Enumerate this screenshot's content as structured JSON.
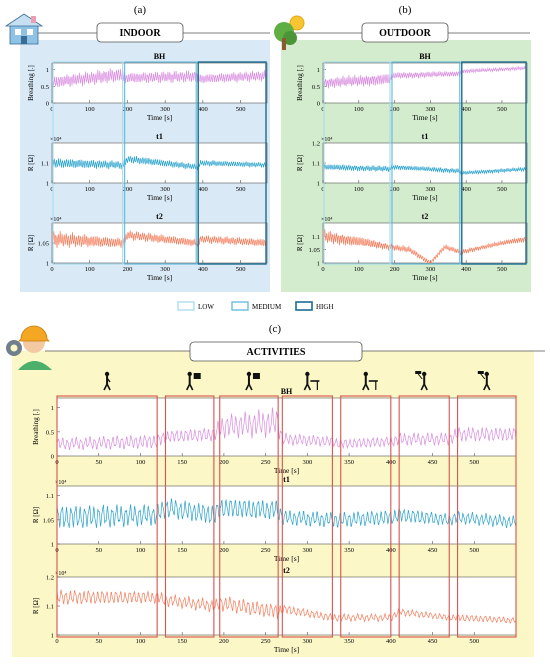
{
  "panel_letters": {
    "a": "(a)",
    "b": "(b)",
    "c": "(c)"
  },
  "colors": {
    "indoor_bg": "#d9e9f5",
    "outdoor_bg": "#d3eccd",
    "activities_bg": "#fbf7c7",
    "breathing": "#d98fe0",
    "t1": "#2aa3cc",
    "t2": "#f47f5e",
    "low": "#a7dcef",
    "medium": "#5fb8dc",
    "high": "#1c6d92",
    "activity_box": "#d9534f"
  },
  "legend": {
    "low": "LOW",
    "medium": "MEDIUM",
    "high": "HIGH"
  },
  "chart_data": [
    {
      "type": "line",
      "panel": "INDOOR",
      "title": "INDOOR",
      "x_ticks": [
        0,
        100,
        200,
        300,
        400,
        500
      ],
      "xlabel": "Time [s]",
      "xlim": [
        0,
        570
      ],
      "intensity_windows": [
        {
          "level": "LOW",
          "x": [
            0,
            190
          ]
        },
        {
          "level": "MEDIUM",
          "x": [
            190,
            385
          ]
        },
        {
          "level": "HIGH",
          "x": [
            385,
            570
          ]
        }
      ],
      "subplots": [
        {
          "name": "BH",
          "ylabel": "Breathing [.]",
          "exponent": "",
          "ylim": [
            0,
            1.2
          ],
          "y_ticks": [
            0,
            0.5,
            1
          ],
          "series": [
            {
              "x": [
                0,
                185,
                195,
                380,
                390,
                570
              ],
              "y_center": [
                0.62,
                0.85,
                0.75,
                0.8,
                0.72,
                0.82
              ],
              "amplitude": [
                0.18,
                0.22,
                0.16,
                0.18,
                0.14,
                0.16
              ]
            }
          ]
        },
        {
          "name": "t1",
          "ylabel": "R [Ω]",
          "exponent": "×10⁴",
          "ylim": [
            1.0,
            1.2
          ],
          "y_ticks": [
            1,
            1.1
          ],
          "series": [
            {
              "x": [
                0,
                190,
                200,
                385,
                395,
                570
              ],
              "y_center": [
                1.1,
                1.09,
                1.12,
                1.08,
                1.1,
                1.09
              ],
              "amplitude": [
                0.025,
                0.02,
                0.02,
                0.015,
                0.015,
                0.012
              ]
            }
          ]
        },
        {
          "name": "t2",
          "ylabel": "R [Ω]",
          "exponent": "×10⁴",
          "ylim": [
            1.0,
            1.1
          ],
          "y_ticks": [
            1,
            1.05
          ],
          "series": [
            {
              "x": [
                0,
                190,
                200,
                385,
                395,
                570
              ],
              "y_center": [
                1.06,
                1.05,
                1.07,
                1.05,
                1.06,
                1.05
              ],
              "amplitude": [
                0.02,
                0.012,
                0.012,
                0.01,
                0.01,
                0.01
              ]
            }
          ]
        }
      ]
    },
    {
      "type": "line",
      "panel": "OUTDOOR",
      "title": "OUTDOOR",
      "x_ticks": [
        0,
        100,
        200,
        300,
        400,
        500
      ],
      "xlabel": "Time [s]",
      "xlim": [
        0,
        570
      ],
      "intensity_windows": [
        {
          "level": "LOW",
          "x": [
            0,
            190
          ]
        },
        {
          "level": "MEDIUM",
          "x": [
            190,
            385
          ]
        },
        {
          "level": "HIGH",
          "x": [
            385,
            570
          ]
        }
      ],
      "subplots": [
        {
          "name": "BH",
          "ylabel": "Breathing [.]",
          "exponent": "",
          "ylim": [
            0,
            1.2
          ],
          "y_ticks": [
            0,
            0.5,
            1
          ],
          "series": [
            {
              "x": [
                0,
                185,
                195,
                380,
                390,
                570
              ],
              "y_center": [
                0.6,
                0.72,
                0.82,
                0.88,
                0.95,
                1.05
              ],
              "amplitude": [
                0.16,
                0.18,
                0.1,
                0.08,
                0.06,
                0.05
              ]
            }
          ]
        },
        {
          "name": "t1",
          "ylabel": "R [Ω]",
          "exponent": "×10⁴",
          "ylim": [
            1.0,
            1.2
          ],
          "y_ticks": [
            1,
            1.1,
            1.2
          ],
          "series": [
            {
              "x": [
                0,
                185,
                195,
                380,
                390,
                570
              ],
              "y_center": [
                1.08,
                1.07,
                1.08,
                1.06,
                1.05,
                1.07
              ],
              "amplitude": [
                0.015,
                0.015,
                0.012,
                0.012,
                0.01,
                0.01
              ]
            }
          ]
        },
        {
          "name": "t2",
          "ylabel": "R [Ω]",
          "exponent": "×10⁴",
          "ylim": [
            1.0,
            1.15
          ],
          "y_ticks": [
            1,
            1.05,
            1.1
          ],
          "series": [
            {
              "x": [
                0,
                100,
                190,
                240,
                300,
                340,
                385,
                450,
                520,
                570
              ],
              "y_center": [
                1.1,
                1.08,
                1.06,
                1.05,
                1.0,
                1.06,
                1.04,
                1.06,
                1.08,
                1.09
              ],
              "amplitude": [
                0.025,
                0.02,
                0.012,
                0.012,
                0.008,
                0.01,
                0.01,
                0.008,
                0.01,
                0.012
              ]
            }
          ]
        }
      ]
    },
    {
      "type": "line",
      "panel": "ACTIVITIES",
      "title": "ACTIVITIES",
      "x_ticks": [
        0,
        50,
        100,
        150,
        200,
        250,
        300,
        350,
        400,
        450,
        500
      ],
      "xlabel": "Time [s]",
      "xlim": [
        0,
        550
      ],
      "activity_windows": [
        [
          0,
          120
        ],
        [
          130,
          188
        ],
        [
          195,
          265
        ],
        [
          270,
          330
        ],
        [
          340,
          400
        ],
        [
          410,
          470
        ],
        [
          480,
          550
        ]
      ],
      "activity_icons": [
        "walk-icon",
        "sign-icon",
        "sign-icon",
        "desk-icon",
        "desk-icon",
        "paint-roller-icon",
        "paint-roller-icon"
      ],
      "subplots": [
        {
          "name": "BH",
          "ylabel": "Breathing [.]",
          "exponent": "",
          "ylim": [
            0,
            1.2
          ],
          "y_ticks": [
            0,
            0.5,
            1
          ],
          "series": [
            {
              "x": [
                0,
                120,
                130,
                190,
                195,
                265,
                270,
                330,
                340,
                400,
                410,
                470,
                480,
                550
              ],
              "y_center": [
                0.25,
                0.3,
                0.4,
                0.45,
                0.6,
                0.7,
                0.35,
                0.3,
                0.25,
                0.3,
                0.35,
                0.35,
                0.45,
                0.45
              ],
              "amplitude": [
                0.12,
                0.14,
                0.12,
                0.14,
                0.22,
                0.28,
                0.12,
                0.1,
                0.1,
                0.1,
                0.12,
                0.12,
                0.14,
                0.14
              ]
            }
          ]
        },
        {
          "name": "t1",
          "ylabel": "R [Ω]",
          "exponent": "×10⁴",
          "ylim": [
            1.0,
            1.12
          ],
          "y_ticks": [
            1,
            1.05,
            1.1
          ],
          "series": [
            {
              "x": [
                0,
                120,
                130,
                190,
                195,
                265,
                270,
                330,
                340,
                400,
                410,
                470,
                480,
                550
              ],
              "y_center": [
                1.055,
                1.06,
                1.075,
                1.06,
                1.075,
                1.07,
                1.055,
                1.05,
                1.05,
                1.055,
                1.06,
                1.05,
                1.055,
                1.045
              ],
              "amplitude": [
                0.025,
                0.02,
                0.02,
                0.02,
                0.02,
                0.02,
                0.015,
                0.015,
                0.015,
                0.015,
                0.015,
                0.012,
                0.012,
                0.012
              ]
            }
          ]
        },
        {
          "name": "t2",
          "ylabel": "R [Ω]",
          "exponent": "×10⁴",
          "ylim": [
            1.0,
            1.2
          ],
          "y_ticks": [
            1,
            1.1,
            1.2
          ],
          "series": [
            {
              "x": [
                0,
                120,
                130,
                190,
                195,
                265,
                270,
                330,
                340,
                400,
                410,
                470,
                480,
                550
              ],
              "y_center": [
                1.13,
                1.13,
                1.12,
                1.1,
                1.11,
                1.08,
                1.09,
                1.06,
                1.06,
                1.06,
                1.08,
                1.06,
                1.06,
                1.05
              ],
              "amplitude": [
                0.025,
                0.02,
                0.02,
                0.02,
                0.025,
                0.025,
                0.015,
                0.012,
                0.012,
                0.012,
                0.012,
                0.01,
                0.012,
                0.01
              ]
            }
          ]
        }
      ]
    }
  ]
}
